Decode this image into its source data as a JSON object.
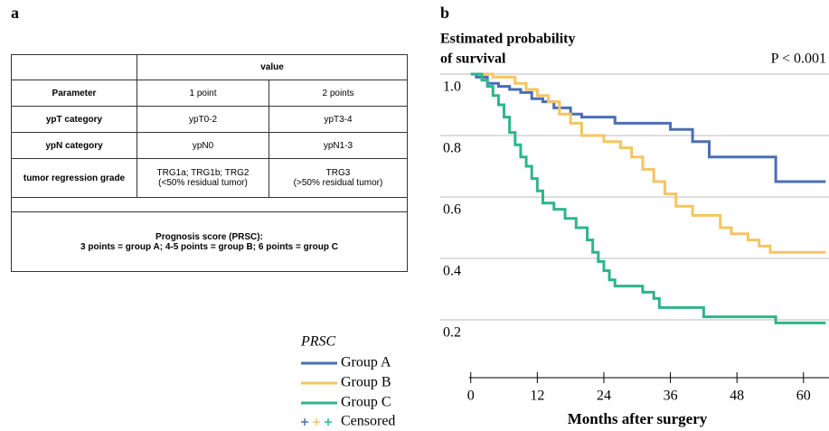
{
  "panel_labels": [
    "a",
    "b"
  ],
  "table": {
    "header": [
      "value"
    ],
    "rows": [
      [
        "Parameter",
        "1 point",
        "2 points"
      ],
      [
        "ypT category",
        "ypT0-2",
        "ypT3-4"
      ],
      [
        "ypN category",
        "ypN0",
        "ypN1-3"
      ],
      [
        "tumor regression grade",
        [
          "TRG1a; TRG1b; TRG2",
          "(<50% residual tumor)"
        ],
        [
          "TRG3",
          "(>50% residual tumor)"
        ]
      ]
    ],
    "footer": [
      "Prognosis score (PRSC):",
      "3 points = group A; 4-5 points = group B; 6 points = group C"
    ]
  },
  "chart_data": {
    "type": "step",
    "ylabel": [
      "Estimated probability",
      "of survival"
    ],
    "annotation": "P < 0.001",
    "xlabel": "Months after surgery",
    "legend_title": "PRSC",
    "censored_label": "Censored",
    "xlim": [
      -5.5,
      64.6
    ],
    "xticks": [
      0,
      12,
      24,
      36,
      48,
      60
    ],
    "ylim": [
      0,
      1
    ],
    "yticks": [
      0.2,
      0.4,
      0.6,
      0.8,
      {
        "value": 1,
        "label": "1.0"
      }
    ],
    "grid": true,
    "series": [
      {
        "name": "Group A",
        "color": "#4a6fb5",
        "x": [
          0,
          1,
          3,
          5,
          7,
          9,
          11,
          13,
          15,
          18,
          20,
          26,
          36,
          40,
          43,
          55,
          64
        ],
        "values": [
          1.0,
          0.99,
          0.97,
          0.96,
          0.95,
          0.94,
          0.92,
          0.91,
          0.89,
          0.87,
          0.86,
          0.84,
          0.82,
          0.78,
          0.73,
          0.65,
          0.65
        ]
      },
      {
        "name": "Group B",
        "color": "#f5c462",
        "x": [
          0,
          4,
          8,
          10,
          12,
          14,
          16,
          18,
          20,
          24,
          27,
          29,
          31,
          33,
          35,
          37,
          40,
          45,
          47,
          50,
          52,
          54,
          64
        ],
        "values": [
          1.0,
          0.99,
          0.97,
          0.95,
          0.93,
          0.91,
          0.87,
          0.84,
          0.8,
          0.78,
          0.76,
          0.73,
          0.69,
          0.65,
          0.61,
          0.57,
          0.54,
          0.5,
          0.48,
          0.46,
          0.44,
          0.42,
          0.42
        ]
      },
      {
        "name": "Group C",
        "color": "#2db58a",
        "x": [
          0,
          2,
          3,
          4,
          5,
          6,
          7,
          8,
          9,
          10,
          11,
          12,
          13,
          15,
          17,
          19,
          21,
          22,
          23,
          24,
          25,
          26,
          31,
          33,
          34,
          42,
          55,
          64
        ],
        "values": [
          1.0,
          0.98,
          0.96,
          0.93,
          0.9,
          0.86,
          0.81,
          0.77,
          0.73,
          0.7,
          0.66,
          0.62,
          0.58,
          0.56,
          0.53,
          0.5,
          0.46,
          0.42,
          0.39,
          0.36,
          0.33,
          0.31,
          0.29,
          0.27,
          0.24,
          0.21,
          0.19,
          0.19
        ]
      }
    ]
  }
}
